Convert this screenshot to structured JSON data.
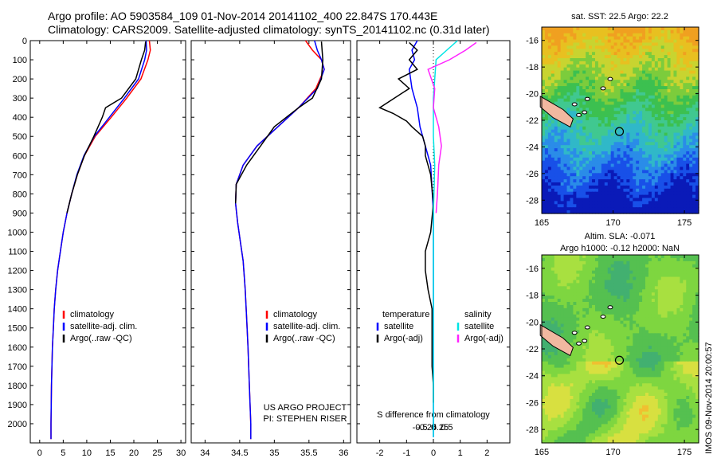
{
  "header": {
    "line1": "Argo profile: AO 5903584_109 01-Nov-2014 20141102_400 22.847S 170.443E",
    "line2": "Climatology: CARS2009. Satellite-adjusted climatology: synTS_20141102.nc (0.31d later)"
  },
  "depth_ticks": [
    0,
    100,
    200,
    300,
    400,
    500,
    600,
    700,
    800,
    900,
    1000,
    1100,
    1200,
    1300,
    1400,
    1500,
    1600,
    1700,
    1800,
    1900,
    2000
  ],
  "legend_prof": [
    "climatology",
    "satellite-adj. clim.",
    "Argo(..raw -QC)"
  ],
  "legend_diff": {
    "t_head": "temperature",
    "s_head": "salinity",
    "t_items": [
      "satellite",
      "Argo(-adj)"
    ],
    "s_items": [
      "satellite",
      "Argo(-adj)"
    ]
  },
  "credits": [
    "US ARGO PROJECT",
    "PI: STEPHEN RISER"
  ],
  "side_text": "IMOS 09-Nov-2014 20:00:57",
  "colors": {
    "clim": "#ff0000",
    "sat": "#0000ff",
    "argo": "#000000",
    "cyan": "#00e5e5",
    "magenta": "#ff22ff"
  },
  "chart_data": [
    {
      "type": "line",
      "name": "temperature",
      "xlabel": "temperature (deg C)",
      "xlim": [
        -2,
        31
      ],
      "ylim": [
        2100,
        0
      ],
      "xticks": [
        0,
        5,
        10,
        15,
        20,
        25,
        30
      ],
      "series": [
        {
          "name": "climatology",
          "color": "#ff0000",
          "points": [
            [
              23.3,
              0
            ],
            [
              23.5,
              50
            ],
            [
              23.0,
              100
            ],
            [
              21.5,
              200
            ],
            [
              18.5,
              300
            ],
            [
              15.2,
              400
            ],
            [
              11.8,
              500
            ],
            [
              9.5,
              600
            ],
            [
              8.0,
              700
            ],
            [
              6.8,
              800
            ],
            [
              5.8,
              900
            ],
            [
              5.0,
              1000
            ],
            [
              4.4,
              1100
            ],
            [
              3.8,
              1200
            ],
            [
              3.4,
              1300
            ],
            [
              3.1,
              1400
            ],
            [
              2.9,
              1500
            ],
            [
              2.7,
              1600
            ],
            [
              2.6,
              1700
            ],
            [
              2.5,
              1800
            ],
            [
              2.45,
              1900
            ],
            [
              2.4,
              2000
            ],
            [
              2.4,
              2080
            ]
          ]
        },
        {
          "name": "satellite-adj. clim.",
          "color": "#0000ff",
          "points": [
            [
              22.6,
              0
            ],
            [
              22.7,
              50
            ],
            [
              22.3,
              100
            ],
            [
              21.0,
              200
            ],
            [
              18.0,
              300
            ],
            [
              14.8,
              400
            ],
            [
              11.6,
              500
            ],
            [
              9.4,
              600
            ],
            [
              7.9,
              700
            ],
            [
              6.8,
              800
            ],
            [
              5.8,
              900
            ],
            [
              5.0,
              1000
            ],
            [
              4.4,
              1100
            ],
            [
              3.8,
              1200
            ],
            [
              3.4,
              1300
            ],
            [
              3.1,
              1400
            ],
            [
              2.9,
              1500
            ],
            [
              2.7,
              1600
            ],
            [
              2.6,
              1700
            ],
            [
              2.5,
              1800
            ],
            [
              2.45,
              1900
            ],
            [
              2.4,
              2000
            ],
            [
              2.4,
              2080
            ]
          ]
        },
        {
          "name": "Argo(..raw -QC)",
          "color": "#000000",
          "points": [
            [
              22.5,
              5
            ],
            [
              22.3,
              50
            ],
            [
              21.6,
              100
            ],
            [
              20.4,
              200
            ],
            [
              17.4,
              300
            ],
            [
              14.0,
              350
            ],
            [
              13.3,
              400
            ],
            [
              11.5,
              500
            ],
            [
              9.5,
              600
            ],
            [
              8.0,
              700
            ],
            [
              6.8,
              800
            ],
            [
              5.8,
              900
            ]
          ]
        }
      ]
    },
    {
      "type": "line",
      "name": "salinity",
      "xlabel": "salinity",
      "xlim": [
        33.8,
        36.1
      ],
      "ylim": [
        2100,
        0
      ],
      "xticks": [
        34,
        34.5,
        35,
        35.5,
        36
      ],
      "series": [
        {
          "name": "climatology",
          "color": "#ff0000",
          "points": [
            [
              35.45,
              0
            ],
            [
              35.55,
              50
            ],
            [
              35.68,
              100
            ],
            [
              35.72,
              150
            ],
            [
              35.6,
              250
            ],
            [
              35.35,
              350
            ],
            [
              35.05,
              450
            ],
            [
              34.75,
              550
            ],
            [
              34.55,
              650
            ],
            [
              34.45,
              750
            ],
            [
              34.44,
              850
            ],
            [
              34.47,
              950
            ],
            [
              34.51,
              1050
            ],
            [
              34.55,
              1150
            ],
            [
              34.58,
              1300
            ],
            [
              34.6,
              1450
            ],
            [
              34.62,
              1600
            ],
            [
              34.64,
              1800
            ],
            [
              34.66,
              2000
            ],
            [
              34.66,
              2080
            ]
          ]
        },
        {
          "name": "satellite-adj. clim.",
          "color": "#0000ff",
          "points": [
            [
              35.58,
              0
            ],
            [
              35.62,
              50
            ],
            [
              35.68,
              100
            ],
            [
              35.72,
              150
            ],
            [
              35.62,
              250
            ],
            [
              35.35,
              350
            ],
            [
              35.05,
              450
            ],
            [
              34.75,
              550
            ],
            [
              34.55,
              650
            ],
            [
              34.45,
              750
            ],
            [
              34.44,
              850
            ],
            [
              34.47,
              950
            ],
            [
              34.51,
              1050
            ],
            [
              34.55,
              1150
            ],
            [
              34.58,
              1300
            ],
            [
              34.6,
              1450
            ],
            [
              34.62,
              1600
            ],
            [
              34.64,
              1800
            ],
            [
              34.66,
              2000
            ],
            [
              34.66,
              2080
            ]
          ]
        },
        {
          "name": "Argo(..raw -QC)",
          "color": "#000000",
          "points": [
            [
              35.68,
              5
            ],
            [
              35.7,
              100
            ],
            [
              35.68,
              200
            ],
            [
              35.55,
              300
            ],
            [
              35.35,
              350
            ],
            [
              35.0,
              450
            ],
            [
              34.8,
              550
            ],
            [
              34.6,
              650
            ],
            [
              34.45,
              750
            ],
            [
              34.44,
              850
            ]
          ]
        }
      ]
    },
    {
      "type": "line",
      "name": "difference from climatology",
      "xlabel": "T difference from climatology",
      "xlabel_top": "S difference from climatology",
      "xlim": [
        -2.85,
        2.85
      ],
      "ylim": [
        2100,
        0
      ],
      "xticks": [
        -2,
        -1,
        0,
        1,
        2
      ],
      "xticks_s": [
        "-0.5",
        "-0.25",
        "0",
        "0.25",
        "0.5"
      ],
      "series": [
        {
          "name": "temperature satellite",
          "color": "#0000ff",
          "points": [
            [
              -0.6,
              0
            ],
            [
              -0.8,
              50
            ],
            [
              -0.7,
              100
            ],
            [
              -0.9,
              150
            ],
            [
              -0.8,
              250
            ],
            [
              -0.6,
              350
            ],
            [
              -0.5,
              450
            ],
            [
              -0.3,
              550
            ],
            [
              -0.1,
              650
            ],
            [
              0,
              900
            ],
            [
              0,
              2070
            ]
          ]
        },
        {
          "name": "temperature Argo(-adj)",
          "color": "#000000",
          "points": [
            [
              -0.9,
              10
            ],
            [
              -0.6,
              50
            ],
            [
              -0.9,
              100
            ],
            [
              -0.6,
              150
            ],
            [
              -1.3,
              200
            ],
            [
              -0.9,
              250
            ],
            [
              -2.0,
              350
            ],
            [
              -1.5,
              380
            ],
            [
              -1.0,
              420
            ],
            [
              -0.8,
              450
            ],
            [
              -0.4,
              500
            ],
            [
              -0.3,
              550
            ],
            [
              -0.3,
              600
            ],
            [
              -0.1,
              700
            ],
            [
              0,
              850
            ],
            [
              -0.1,
              1000
            ],
            [
              -0.3,
              1100
            ],
            [
              -0.3,
              1200
            ],
            [
              -0.2,
              1300
            ],
            [
              -0.05,
              1400
            ],
            [
              -0.05,
              1700
            ],
            [
              0,
              1800
            ],
            [
              0,
              1890
            ]
          ]
        },
        {
          "name": "salinity satellite",
          "color": "#00e5e5",
          "points": [
            [
              0.9,
              0
            ],
            [
              0.5,
              50
            ],
            [
              0.1,
              100
            ],
            [
              0.05,
              200
            ],
            [
              0,
              300
            ],
            [
              0,
              500
            ],
            [
              0.05,
              650
            ],
            [
              0,
              900
            ],
            [
              0,
              2070
            ]
          ]
        },
        {
          "name": "salinity Argo(-adj)",
          "color": "#ff22ff",
          "points": [
            [
              1.6,
              10
            ],
            [
              1.2,
              50
            ],
            [
              0.6,
              100
            ],
            [
              -0.2,
              150
            ],
            [
              0.05,
              250
            ],
            [
              0,
              350
            ],
            [
              0.2,
              450
            ],
            [
              0.3,
              550
            ],
            [
              0.2,
              650
            ],
            [
              0.15,
              800
            ],
            [
              0.1,
              900
            ]
          ]
        }
      ]
    },
    {
      "type": "heatmap",
      "name": "sat SST map",
      "title": "sat. SST: 22.5 Argo: 22.2",
      "xlim": [
        165,
        176
      ],
      "ylim": [
        -29,
        -15
      ],
      "xticks": [
        165,
        170,
        175
      ],
      "yticks": [
        -16,
        -18,
        -20,
        -22,
        -24,
        -26,
        -28
      ],
      "argo_position": [
        170.443,
        -22.847
      ]
    },
    {
      "type": "heatmap",
      "name": "altimetry map",
      "title": "Altim. SLA: -0.071",
      "subtitle": "Argo h1000: -0.12 h2000: NaN",
      "xlim": [
        165,
        176
      ],
      "ylim": [
        -29,
        -15
      ],
      "xticks": [
        165,
        170,
        175
      ],
      "yticks": [
        -16,
        -18,
        -20,
        -22,
        -24,
        -26,
        -28
      ],
      "argo_position": [
        170.443,
        -22.847
      ]
    }
  ]
}
